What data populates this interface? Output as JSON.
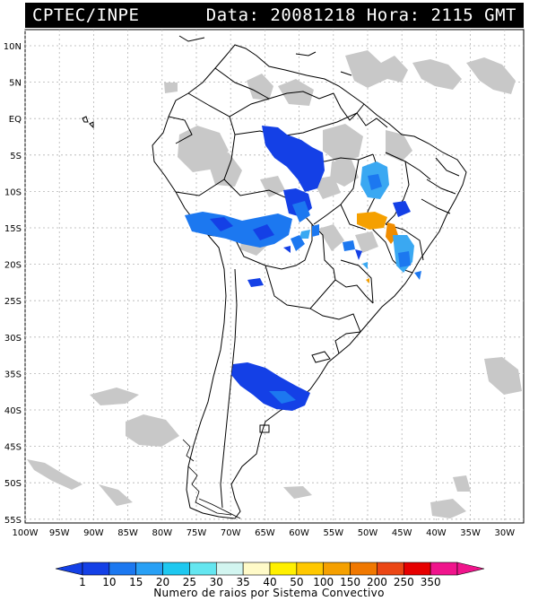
{
  "header": {
    "left": "CPTEC/INPE",
    "right": "Data: 20081218 Hora: 2115 GMT"
  },
  "map": {
    "lat_labels": [
      "10N",
      "5N",
      "EQ",
      "5S",
      "10S",
      "15S",
      "20S",
      "25S",
      "30S",
      "35S",
      "40S",
      "45S",
      "50S",
      "55S"
    ],
    "lon_labels": [
      "100W",
      "95W",
      "90W",
      "85W",
      "80W",
      "75W",
      "70W",
      "65W",
      "60W",
      "55W",
      "50W",
      "45W",
      "40W",
      "35W",
      "30W"
    ],
    "colors": {
      "cloud": "#c8c8c8",
      "c1": "#1440e6",
      "c10": "#1c78f0",
      "c15": "#3aa8f2",
      "c50": "#f5a000",
      "c100": "#f08c00"
    }
  },
  "colorbar": {
    "labels": [
      "1",
      "10",
      "15",
      "20",
      "25",
      "30",
      "35",
      "40",
      "50",
      "100",
      "150",
      "200",
      "250",
      "350"
    ],
    "colors": [
      "#1440e6",
      "#1c78f0",
      "#28a0f5",
      "#1ec8f0",
      "#64e6f0",
      "#d2f5f0",
      "#fffac8",
      "#fff000",
      "#ffc800",
      "#f5a000",
      "#f07800",
      "#eb4614",
      "#e60000",
      "#f0148c"
    ],
    "caption": "Numero de raios por Sistema Convectivo"
  }
}
